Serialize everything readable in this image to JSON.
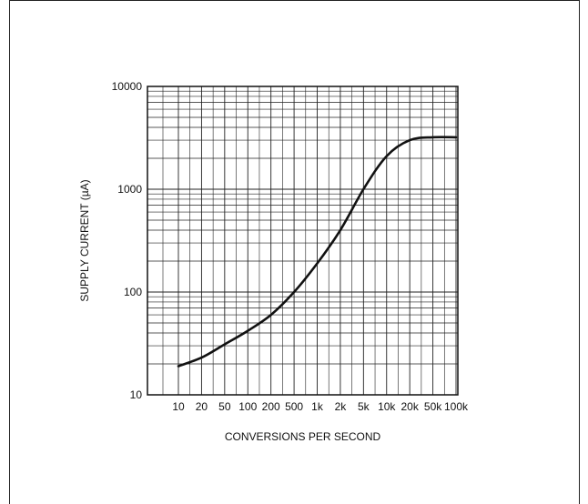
{
  "chart_data": {
    "type": "line",
    "title": "",
    "xlabel": "CONVERSIONS PER SECOND",
    "ylabel": "SUPPLY CURRENT (µA)",
    "x_scale": "log",
    "y_scale": "log",
    "x_tick_labels": [
      "10",
      "20",
      "50",
      "100",
      "200",
      "500",
      "1k",
      "2k",
      "5k",
      "10k",
      "20k",
      "50k",
      "100k"
    ],
    "x_tick_values": [
      10,
      20,
      50,
      100,
      200,
      500,
      1000,
      2000,
      5000,
      10000,
      20000,
      50000,
      100000
    ],
    "y_tick_labels": [
      "10",
      "100",
      "1000",
      "10000"
    ],
    "y_tick_values": [
      10,
      100,
      1000,
      10000
    ],
    "ylim": [
      10,
      10000
    ],
    "grid": true,
    "series": [
      {
        "x": [
          10,
          20,
          50,
          100,
          200,
          500,
          1000,
          2000,
          5000,
          10000,
          20000,
          50000,
          100000
        ],
        "y": [
          19,
          23,
          31,
          42,
          60,
          100,
          190,
          400,
          1000,
          2100,
          3000,
          3200,
          3200
        ]
      }
    ],
    "line_color": "#111111"
  }
}
